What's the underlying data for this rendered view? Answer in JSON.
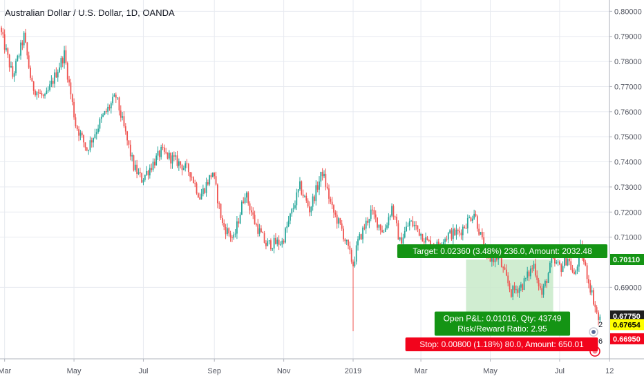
{
  "title": "Australian Dollar / U.S. Dollar, 1D, OANDA",
  "colors": {
    "up": "#26a69a",
    "down": "#ef5350",
    "grid": "#e7eaf0",
    "axis_text": "#50535e",
    "target_zone": "#c8eac9",
    "target_label": "#149414",
    "stop_label": "#f2041c",
    "price_tag_dark": "#1f1f1f",
    "price_tag_yellow": "#ffff00"
  },
  "x_axis": {
    "labels": [
      {
        "label": "Mar",
        "index": 2
      },
      {
        "label": "May",
        "index": 45
      },
      {
        "label": "Jul",
        "index": 88
      },
      {
        "label": "Sep",
        "index": 132
      },
      {
        "label": "Nov",
        "index": 175
      },
      {
        "label": "2019",
        "index": 218
      },
      {
        "label": "Mar",
        "index": 260
      },
      {
        "label": "May",
        "index": 303
      },
      {
        "label": "Jul",
        "index": 346
      },
      {
        "label": "12",
        "index": 377
      }
    ]
  },
  "y_axis": {
    "ticks": [
      "0.80000",
      "0.79000",
      "0.78000",
      "0.77000",
      "0.76000",
      "0.75000",
      "0.74000",
      "0.73000",
      "0.72000",
      "0.71000",
      "0.70110",
      "0.69000",
      "0.67750",
      "0.67654",
      "0.66950"
    ],
    "min": 0.6615,
    "max": 0.8045
  },
  "price_tags": [
    {
      "value": "0.70110",
      "style": "green"
    },
    {
      "value": "0.67750",
      "style": "dark"
    },
    {
      "value": "0.67654",
      "style": "yellow"
    },
    {
      "value": "0.66950",
      "style": "red"
    }
  ],
  "position": {
    "target_text": "Target: 0.02360 (3.48%) 236.0, Amount: 2032.48",
    "pl_line1": "Open P&L: 0.01016, Qty: 43749",
    "pl_line2": "Risk/Reward Ratio: 2.95",
    "stop_text": "Stop: 0.00800 (1.18%) 80.0, Amount: 650.01",
    "entry": 0.6775,
    "target": 0.7011,
    "stop": 0.6695,
    "start_index": 288,
    "end_index": 342
  },
  "badges": [
    "2",
    "6"
  ],
  "chart_data": {
    "type": "candlestick",
    "title": "Australian Dollar / U.S. Dollar, 1D, OANDA",
    "interval": "1D",
    "num_bars": 372,
    "anchors": [
      [
        0,
        0.7935
      ],
      [
        8,
        0.774
      ],
      [
        15,
        0.79
      ],
      [
        20,
        0.77
      ],
      [
        28,
        0.765
      ],
      [
        40,
        0.783
      ],
      [
        47,
        0.755
      ],
      [
        54,
        0.745
      ],
      [
        63,
        0.757
      ],
      [
        72,
        0.766
      ],
      [
        76,
        0.756
      ],
      [
        83,
        0.738
      ],
      [
        88,
        0.733
      ],
      [
        100,
        0.744
      ],
      [
        110,
        0.74
      ],
      [
        118,
        0.736
      ],
      [
        124,
        0.726
      ],
      [
        132,
        0.736
      ],
      [
        138,
        0.715
      ],
      [
        145,
        0.709
      ],
      [
        152,
        0.728
      ],
      [
        158,
        0.716
      ],
      [
        165,
        0.707
      ],
      [
        175,
        0.708
      ],
      [
        186,
        0.73
      ],
      [
        192,
        0.721
      ],
      [
        200,
        0.736
      ],
      [
        206,
        0.721
      ],
      [
        212,
        0.713
      ],
      [
        219,
        0.699
      ],
      [
        222,
        0.708
      ],
      [
        230,
        0.72
      ],
      [
        238,
        0.712
      ],
      [
        243,
        0.722
      ],
      [
        248,
        0.708
      ],
      [
        254,
        0.716
      ],
      [
        258,
        0.714
      ],
      [
        265,
        0.708
      ],
      [
        270,
        0.706
      ],
      [
        278,
        0.711
      ],
      [
        285,
        0.712
      ],
      [
        294,
        0.72
      ],
      [
        302,
        0.701
      ],
      [
        309,
        0.702
      ],
      [
        317,
        0.688
      ],
      [
        324,
        0.691
      ],
      [
        331,
        0.699
      ],
      [
        336,
        0.687
      ],
      [
        342,
        0.7
      ],
      [
        348,
        0.698
      ],
      [
        352,
        0.702
      ],
      [
        356,
        0.694
      ],
      [
        360,
        0.705
      ],
      [
        364,
        0.695
      ],
      [
        368,
        0.685
      ],
      [
        371,
        0.677
      ]
    ],
    "ylim": [
      0.6615,
      0.8045
    ]
  }
}
